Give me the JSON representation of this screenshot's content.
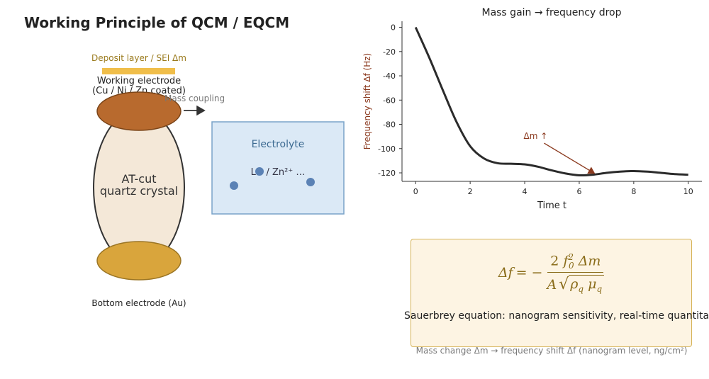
{
  "title": "Working Principle of QCM / EQCM",
  "diagram": {
    "deposit_label": "Deposit layer / SEI  Δm",
    "working_electrode_line1": "Working electrode",
    "working_electrode_line2": "(Cu / Ni / Zn coated)",
    "mass_coupling_label": "Mass coupling",
    "crystal_line1": "AT-cut",
    "crystal_line2": "quartz crystal",
    "bottom_electrode_label": "Bottom electrode (Au)",
    "electrolyte_label": "Electrolyte",
    "ions_text": "Li⁺ / Zn²⁺ …",
    "colors": {
      "deposit": "#f0be4a",
      "top_electrode": "#b86a2e",
      "crystal": "#f4e8d8",
      "bottom_electrode": "#d9a53c",
      "electrolyte_fill": "#dbe9f6",
      "electrolyte_border": "#7aa3c8",
      "ion": "#5b82b5"
    }
  },
  "chart_data": {
    "type": "line",
    "title": "Mass gain → frequency drop",
    "xlabel": "Time t",
    "ylabel": "Frequency shift Δf (Hz)",
    "xlim": [
      -0.5,
      10.5
    ],
    "ylim": [
      -127,
      5
    ],
    "xticks": [
      0,
      2,
      4,
      6,
      8,
      10
    ],
    "yticks": [
      0,
      -20,
      -40,
      -60,
      -80,
      -100,
      -120
    ],
    "series": [
      {
        "x": [
          0,
          0.5,
          1,
          1.5,
          2,
          2.5,
          3,
          3.5,
          4,
          4.5,
          5,
          5.5,
          6,
          6.5,
          7,
          7.5,
          8,
          8.5,
          9,
          9.5,
          10
        ],
        "y": [
          0,
          -25,
          -52,
          -78,
          -98,
          -108,
          -112,
          -112.5,
          -113,
          -115,
          -118,
          -120.5,
          -122,
          -121.5,
          -120,
          -119,
          -118.5,
          -119,
          -120,
          -121,
          -121.5
        ]
      }
    ],
    "annotation": {
      "text": "Δm ↑",
      "x": 6.5,
      "y": -121.5,
      "text_x": 4.4,
      "text_y": -92
    },
    "colors": {
      "line": "#2b2b2b",
      "annotation": "#8b3a1f",
      "ylabel": "#8b3a1f"
    }
  },
  "formula": {
    "lhs": "Δf",
    "rhs_sign": "= −",
    "num_coef": "2",
    "num_f": "f",
    "num_sub": "0",
    "num_sup": "2",
    "num_dm": "Δm",
    "den_A": "A",
    "den_rho": "ρ",
    "den_mu": "μ",
    "den_sub": "q",
    "caption": "Sauerbrey equation: nanogram sensitivity, real-time quantitation"
  },
  "footer_note": "Mass change Δm → frequency shift Δf (nanogram level, ng/cm²)"
}
